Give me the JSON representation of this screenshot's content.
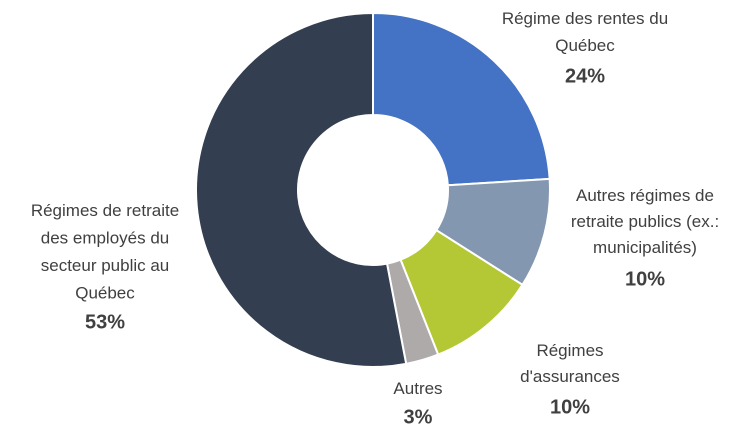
{
  "chart_data": {
    "type": "donut",
    "categories": [
      "Régime des rentes du Québec",
      "Autres régimes de retraite publics (ex.: municipalités)",
      "Régimes d'assurances",
      "Autres",
      "Régimes de retraite des employés du secteur public au Québec"
    ],
    "values": [
      24,
      10,
      10,
      3,
      53
    ],
    "value_labels": [
      "24%",
      "10%",
      "10%",
      "3%",
      "53%"
    ],
    "colors": [
      "#4472c4",
      "#8497b0",
      "#b4c734",
      "#aeaaaa",
      "#333f50"
    ]
  }
}
